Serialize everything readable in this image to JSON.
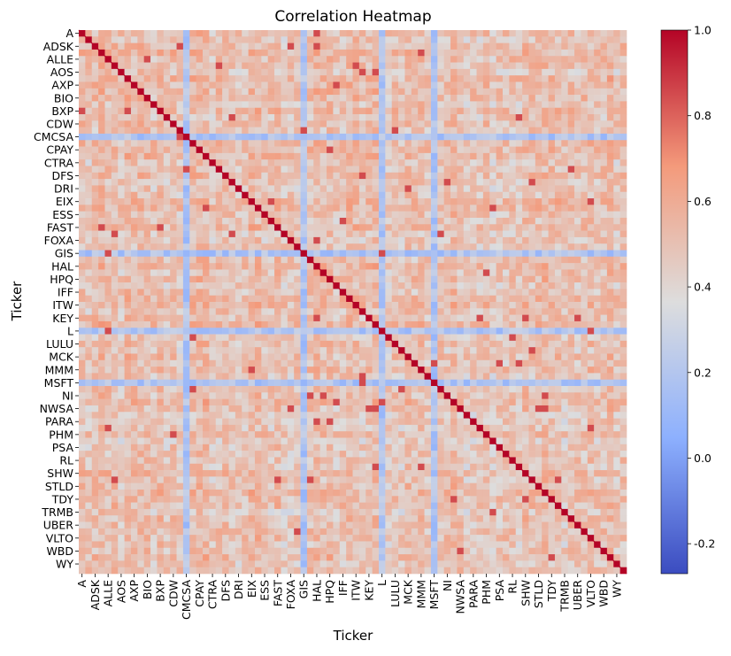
{
  "chart_data": {
    "type": "heatmap",
    "title": "Correlation Heatmap",
    "xlabel": "Ticker",
    "ylabel": "Ticker",
    "tick_labels": [
      "A",
      "ADSK",
      "ALLE",
      "AOS",
      "AXP",
      "BIO",
      "BXP",
      "CDW",
      "CMCSA",
      "CPAY",
      "CTRA",
      "DFS",
      "DRI",
      "EIX",
      "ESS",
      "FAST",
      "FOXA",
      "GIS",
      "HAL",
      "HPQ",
      "IFF",
      "ITW",
      "KEY",
      "L",
      "LULU",
      "MCK",
      "MMM",
      "MSFT",
      "NI",
      "NWSA",
      "PARA",
      "PHM",
      "PSA",
      "RL",
      "SHW",
      "STLD",
      "TDY",
      "TRMB",
      "UBER",
      "VLTO",
      "WBD",
      "WY"
    ],
    "tick_every": 2,
    "matrix_size": 84,
    "diagonal_value": 1.0,
    "typical_value": 0.5,
    "colormap": "coolwarm",
    "vmin": -0.27,
    "vmax": 1.0,
    "colorbar_ticks": [
      "-0.2",
      "0.0",
      "0.2",
      "0.4",
      "0.6",
      "0.8",
      "1.0"
    ],
    "colorbar_tick_values": [
      -0.2,
      0.0,
      0.2,
      0.4,
      0.6,
      0.8,
      1.0
    ],
    "low_correlation_tickers": [
      "CMCSA",
      "GIS",
      "L",
      "MSFT"
    ],
    "grid": false
  }
}
